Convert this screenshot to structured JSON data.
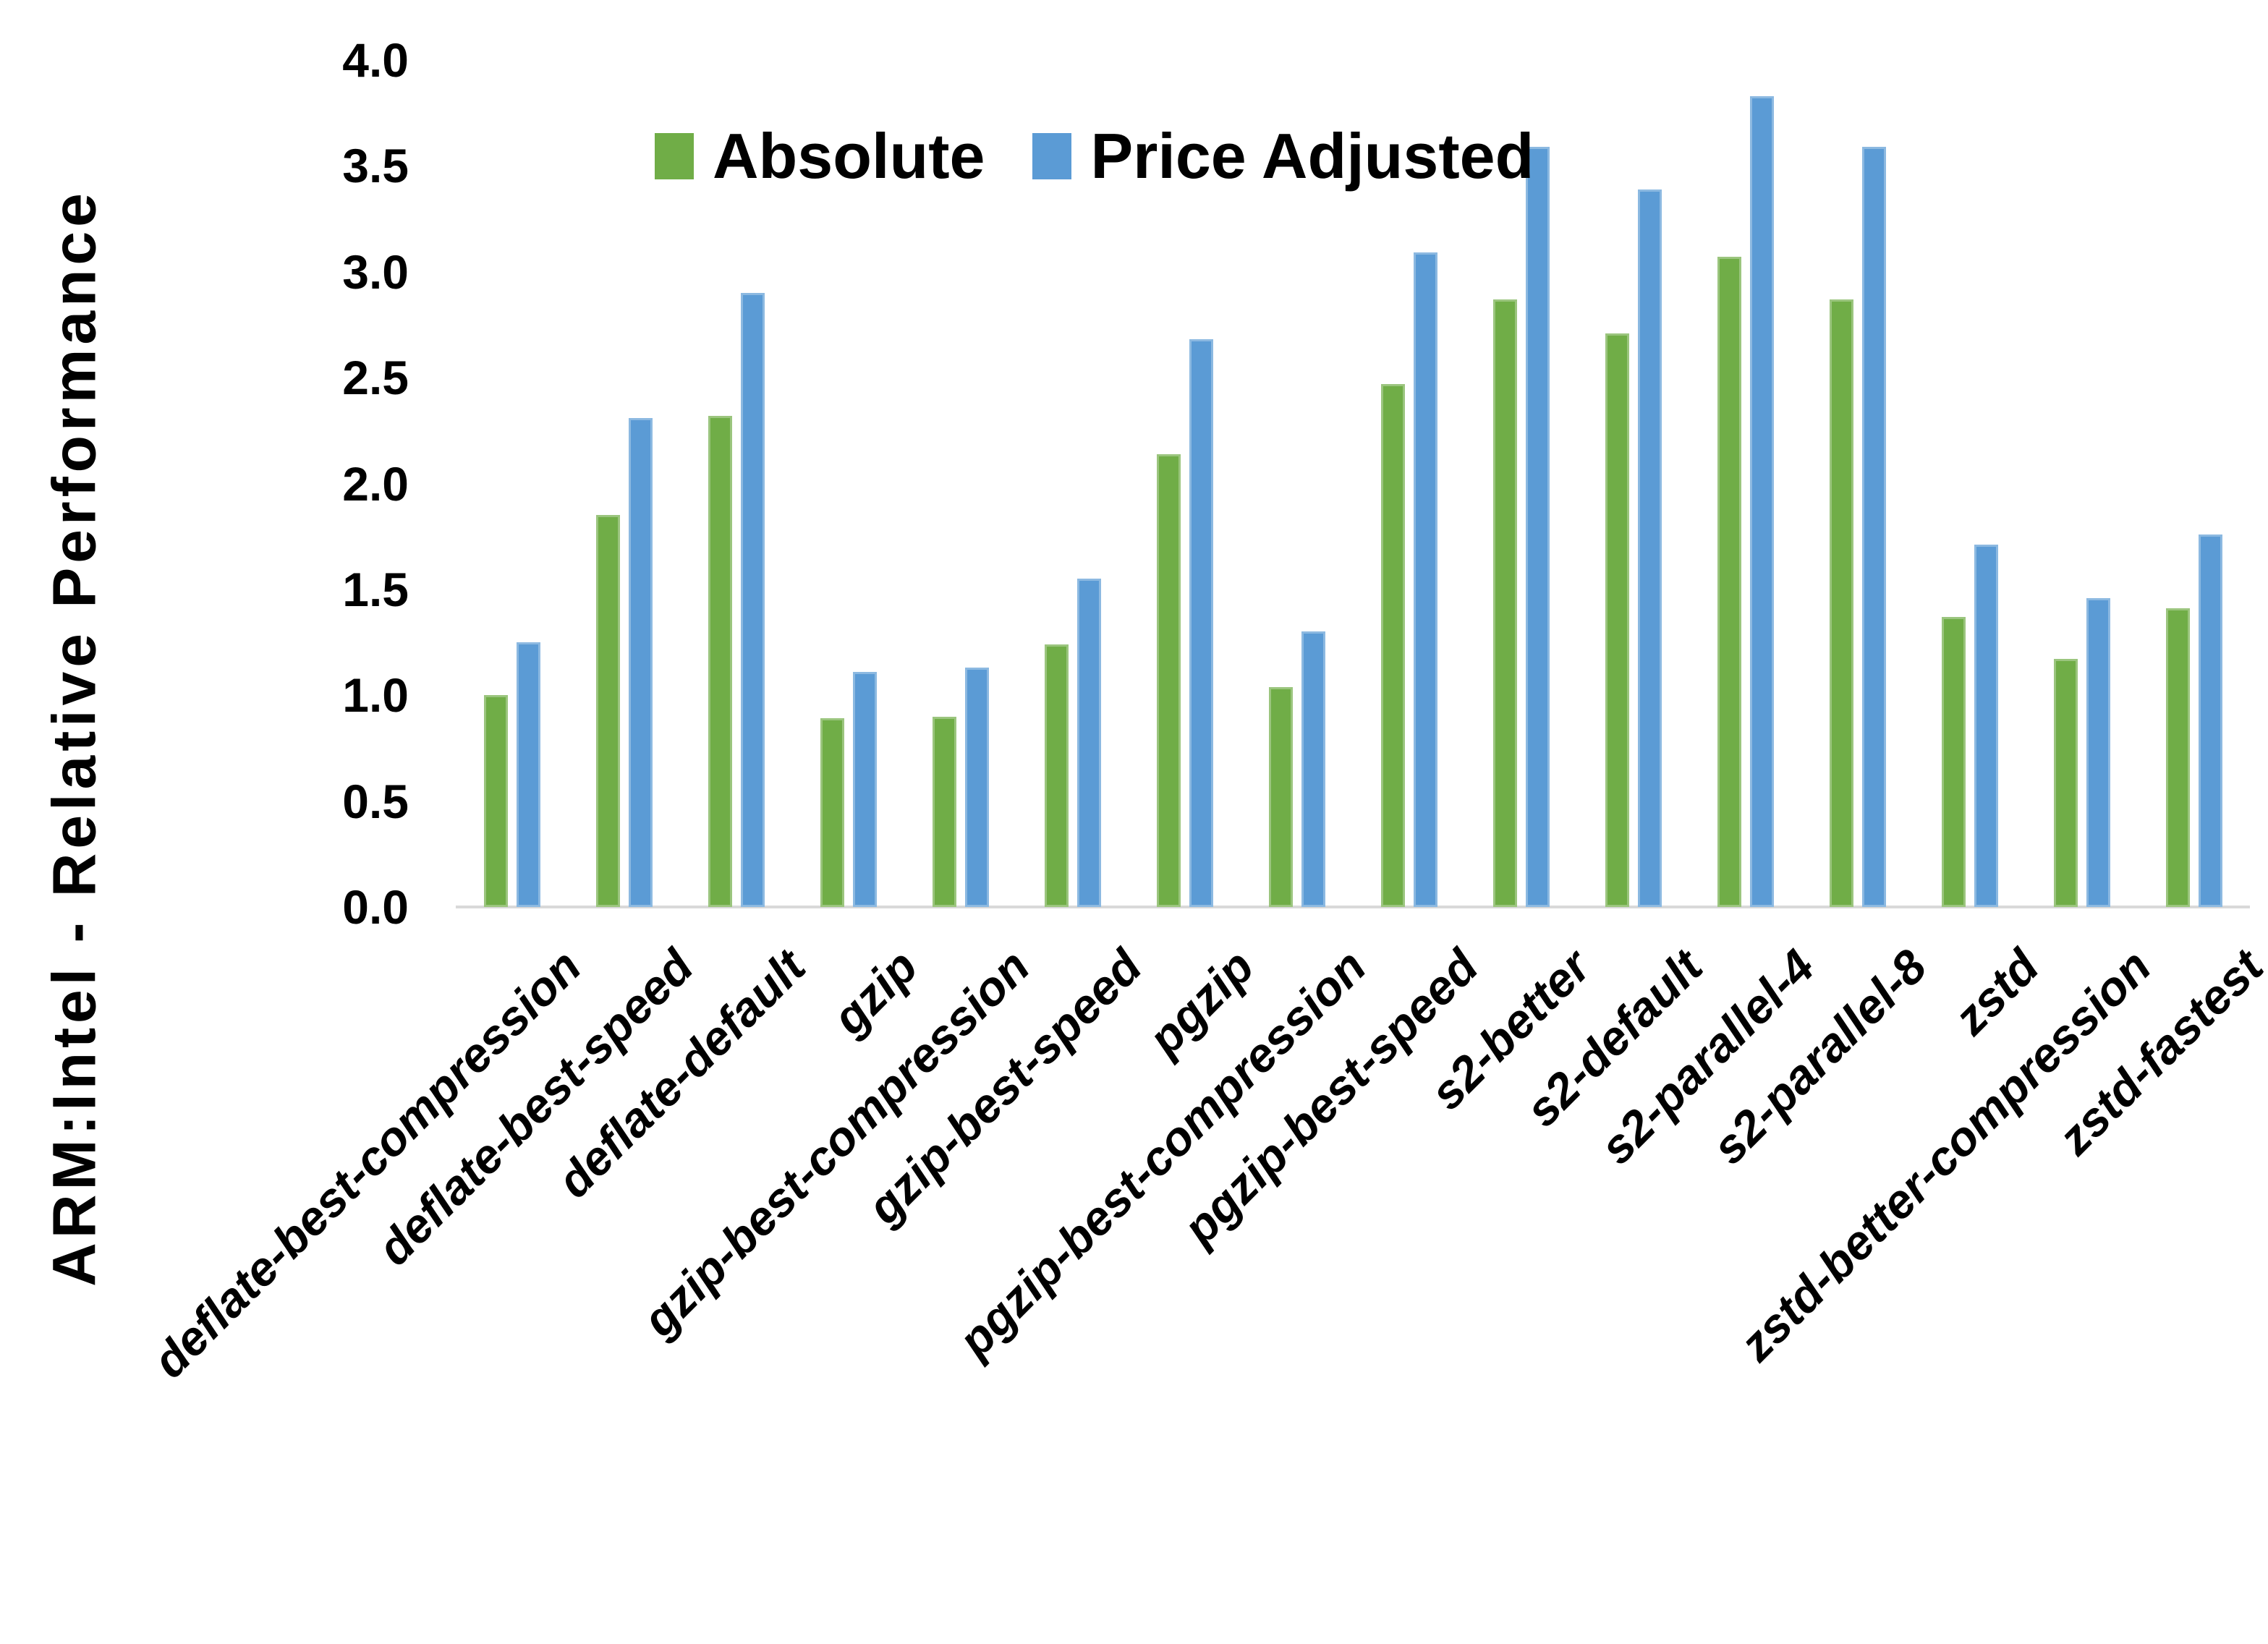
{
  "chart_data": {
    "type": "bar",
    "title": "",
    "ylabel": "ARM:Intel - Relative Performance",
    "xlabel": "",
    "ylim": [
      0,
      4.0
    ],
    "yticks": [
      0.0,
      0.5,
      1.0,
      1.5,
      2.0,
      2.5,
      3.0,
      3.5,
      4.0
    ],
    "grid": false,
    "legend_position": "top-center-inside",
    "axis_line_color": "#D9D9D9",
    "text_color": "#000000",
    "frame_color": "#000000",
    "categories": [
      "deflate-best-compression",
      "deflate-best-speed",
      "deflate-default",
      "gzip",
      "gzip-best-compression",
      "gzip-best-speed",
      "pgzip",
      "pgzip-best-compression",
      "pgzip-best-speed",
      "s2-better",
      "s2-default",
      "s2-parallel-4",
      "s2-parallel-8",
      "zstd",
      "zstd-better-compression",
      "zstd-fastest"
    ],
    "series": [
      {
        "name": "Absolute",
        "color": "#70AD47",
        "values": [
          1.0,
          1.85,
          2.32,
          0.89,
          0.9,
          1.24,
          2.14,
          1.04,
          2.47,
          2.87,
          2.71,
          3.07,
          2.87,
          1.37,
          1.17,
          1.41
        ]
      },
      {
        "name": "Price Adjusted",
        "color": "#5B9BD5",
        "values": [
          1.25,
          2.31,
          2.9,
          1.11,
          1.13,
          1.55,
          2.68,
          1.3,
          3.09,
          3.59,
          3.39,
          3.83,
          3.59,
          1.71,
          1.46,
          1.76
        ]
      }
    ]
  }
}
